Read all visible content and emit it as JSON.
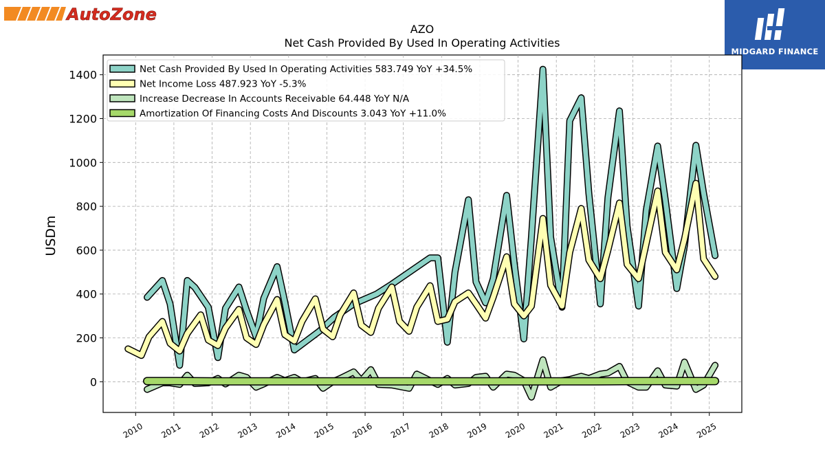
{
  "logos": {
    "autozone": "AutoZone",
    "midgard": "MIDGARD FINANCE"
  },
  "colors": {
    "autozone_orange": "#f28a22",
    "autozone_red": "#d52b1e",
    "midgard_blue": "#2b5cac"
  },
  "chart_data": {
    "type": "line",
    "title": "AZO",
    "subtitle": "Net Cash Provided By Used In Operating Activities",
    "ylabel": "USDm",
    "xlabel": "",
    "ylim": [
      -140,
      1490
    ],
    "xlim": [
      2009.15,
      2025.85
    ],
    "yticks": [
      0,
      200,
      400,
      600,
      800,
      1000,
      1200,
      1400
    ],
    "xticks": [
      2010,
      2011,
      2012,
      2013,
      2014,
      2015,
      2016,
      2017,
      2018,
      2019,
      2020,
      2021,
      2022,
      2023,
      2024,
      2025
    ],
    "grid": true,
    "legend_position": "top-left",
    "series": [
      {
        "name": "Net Cash Provided By Used In Operating Activities",
        "legend": "Net Cash Provided By Used In Operating Activities  583.749 YoY +34.5%",
        "color": "#8dd3c7",
        "width": 7,
        "points": [
          [
            2010.3,
            385
          ],
          [
            2010.7,
            462
          ],
          [
            2010.9,
            355
          ],
          [
            2011.15,
            75
          ],
          [
            2011.35,
            462
          ],
          [
            2011.55,
            430
          ],
          [
            2011.9,
            340
          ],
          [
            2012.15,
            110
          ],
          [
            2012.35,
            335
          ],
          [
            2012.7,
            432
          ],
          [
            2012.9,
            325
          ],
          [
            2013.15,
            205
          ],
          [
            2013.35,
            380
          ],
          [
            2013.7,
            525
          ],
          [
            2013.9,
            365
          ],
          [
            2014.15,
            145
          ],
          [
            2014.8,
            230
          ],
          [
            2015.2,
            295
          ],
          [
            2015.7,
            355
          ],
          [
            2016.3,
            400
          ],
          [
            2016.7,
            445
          ],
          [
            2017.7,
            565
          ],
          [
            2017.9,
            565
          ],
          [
            2018.15,
            180
          ],
          [
            2018.35,
            500
          ],
          [
            2018.7,
            830
          ],
          [
            2018.9,
            455
          ],
          [
            2019.15,
            360
          ],
          [
            2019.35,
            470
          ],
          [
            2019.7,
            850
          ],
          [
            2019.9,
            540
          ],
          [
            2020.15,
            195
          ],
          [
            2020.35,
            660
          ],
          [
            2020.65,
            1425
          ],
          [
            2020.85,
            660
          ],
          [
            2021.15,
            340
          ],
          [
            2021.35,
            1190
          ],
          [
            2021.65,
            1295
          ],
          [
            2021.85,
            860
          ],
          [
            2022.15,
            355
          ],
          [
            2022.35,
            840
          ],
          [
            2022.65,
            1235
          ],
          [
            2022.85,
            710
          ],
          [
            2023.15,
            345
          ],
          [
            2023.35,
            780
          ],
          [
            2023.65,
            1075
          ],
          [
            2023.85,
            830
          ],
          [
            2024.15,
            425
          ],
          [
            2024.35,
            620
          ],
          [
            2024.65,
            1078
          ],
          [
            2024.85,
            860
          ],
          [
            2025.15,
            575
          ]
        ]
      },
      {
        "name": "Net Income Loss",
        "legend": "Net Income Loss  487.923 YoY -5.3%",
        "color": "#ffffb3",
        "width": 7,
        "points": [
          [
            2009.8,
            150
          ],
          [
            2010.15,
            120
          ],
          [
            2010.35,
            205
          ],
          [
            2010.7,
            275
          ],
          [
            2010.9,
            175
          ],
          [
            2011.15,
            140
          ],
          [
            2011.35,
            220
          ],
          [
            2011.7,
            305
          ],
          [
            2011.9,
            190
          ],
          [
            2012.15,
            165
          ],
          [
            2012.35,
            245
          ],
          [
            2012.7,
            330
          ],
          [
            2012.9,
            200
          ],
          [
            2013.15,
            170
          ],
          [
            2013.35,
            260
          ],
          [
            2013.7,
            375
          ],
          [
            2013.9,
            215
          ],
          [
            2014.15,
            185
          ],
          [
            2014.35,
            275
          ],
          [
            2014.7,
            378
          ],
          [
            2014.9,
            240
          ],
          [
            2015.15,
            205
          ],
          [
            2015.35,
            305
          ],
          [
            2015.7,
            405
          ],
          [
            2015.9,
            258
          ],
          [
            2016.15,
            225
          ],
          [
            2016.35,
            335
          ],
          [
            2016.7,
            432
          ],
          [
            2016.9,
            275
          ],
          [
            2017.15,
            230
          ],
          [
            2017.35,
            340
          ],
          [
            2017.7,
            438
          ],
          [
            2017.9,
            275
          ],
          [
            2018.15,
            285
          ],
          [
            2018.35,
            365
          ],
          [
            2018.7,
            405
          ],
          [
            2018.9,
            355
          ],
          [
            2019.15,
            290
          ],
          [
            2019.35,
            385
          ],
          [
            2019.7,
            570
          ],
          [
            2019.9,
            355
          ],
          [
            2020.15,
            300
          ],
          [
            2020.35,
            345
          ],
          [
            2020.65,
            745
          ],
          [
            2020.85,
            440
          ],
          [
            2021.15,
            345
          ],
          [
            2021.35,
            590
          ],
          [
            2021.65,
            790
          ],
          [
            2021.85,
            555
          ],
          [
            2022.15,
            470
          ],
          [
            2022.35,
            600
          ],
          [
            2022.65,
            815
          ],
          [
            2022.85,
            535
          ],
          [
            2023.15,
            470
          ],
          [
            2023.35,
            630
          ],
          [
            2023.65,
            870
          ],
          [
            2023.85,
            590
          ],
          [
            2024.15,
            510
          ],
          [
            2024.35,
            650
          ],
          [
            2024.65,
            905
          ],
          [
            2024.85,
            560
          ],
          [
            2025.15,
            480
          ]
        ]
      },
      {
        "name": "Increase Decrease In Accounts Receivable",
        "legend": "Increase Decrease In Accounts Receivable  64.448 YoY N/A",
        "color": "#bfe5bd",
        "width": 7,
        "points": [
          [
            2010.3,
            -35
          ],
          [
            2010.7,
            -5
          ],
          [
            2010.9,
            -5
          ],
          [
            2011.15,
            -12
          ],
          [
            2011.35,
            30
          ],
          [
            2011.55,
            -8
          ],
          [
            2011.9,
            -5
          ],
          [
            2012.15,
            15
          ],
          [
            2012.35,
            -10
          ],
          [
            2012.7,
            30
          ],
          [
            2012.9,
            20
          ],
          [
            2013.15,
            -25
          ],
          [
            2013.35,
            -10
          ],
          [
            2013.7,
            20
          ],
          [
            2013.9,
            5
          ],
          [
            2014.15,
            20
          ],
          [
            2014.35,
            0
          ],
          [
            2014.7,
            15
          ],
          [
            2014.9,
            -30
          ],
          [
            2015.15,
            0
          ],
          [
            2015.35,
            15
          ],
          [
            2015.7,
            45
          ],
          [
            2015.9,
            5
          ],
          [
            2016.15,
            55
          ],
          [
            2016.35,
            -12
          ],
          [
            2016.7,
            -15
          ],
          [
            2017.15,
            -30
          ],
          [
            2017.35,
            35
          ],
          [
            2017.7,
            5
          ],
          [
            2017.9,
            -12
          ],
          [
            2018.15,
            15
          ],
          [
            2018.35,
            -15
          ],
          [
            2018.7,
            -8
          ],
          [
            2018.9,
            20
          ],
          [
            2019.15,
            25
          ],
          [
            2019.35,
            -25
          ],
          [
            2019.7,
            35
          ],
          [
            2019.9,
            30
          ],
          [
            2020.15,
            5
          ],
          [
            2020.35,
            -70
          ],
          [
            2020.65,
            100
          ],
          [
            2020.85,
            -25
          ],
          [
            2021.15,
            5
          ],
          [
            2021.35,
            10
          ],
          [
            2021.65,
            25
          ],
          [
            2021.85,
            15
          ],
          [
            2022.15,
            35
          ],
          [
            2022.35,
            40
          ],
          [
            2022.65,
            70
          ],
          [
            2022.85,
            0
          ],
          [
            2023.15,
            -25
          ],
          [
            2023.35,
            -25
          ],
          [
            2023.65,
            50
          ],
          [
            2023.85,
            -15
          ],
          [
            2024.15,
            -20
          ],
          [
            2024.35,
            90
          ],
          [
            2024.65,
            -35
          ],
          [
            2024.85,
            -15
          ],
          [
            2025.15,
            75
          ]
        ]
      },
      {
        "name": "Amortization Of Financing Costs And Discounts",
        "legend": "Amortization Of Financing Costs And Discounts  3.043 YoY +11.0%",
        "color": "#a6d96a",
        "width": 9,
        "points": [
          [
            2010.3,
            3
          ],
          [
            2011.0,
            3
          ],
          [
            2012.0,
            2
          ],
          [
            2013.0,
            2
          ],
          [
            2014.0,
            2
          ],
          [
            2015.0,
            2
          ],
          [
            2016.0,
            2
          ],
          [
            2017.0,
            2
          ],
          [
            2018.0,
            2
          ],
          [
            2019.0,
            2
          ],
          [
            2020.0,
            2
          ],
          [
            2021.0,
            2
          ],
          [
            2022.0,
            2
          ],
          [
            2023.0,
            3
          ],
          [
            2024.0,
            3
          ],
          [
            2025.15,
            3
          ]
        ]
      }
    ]
  }
}
